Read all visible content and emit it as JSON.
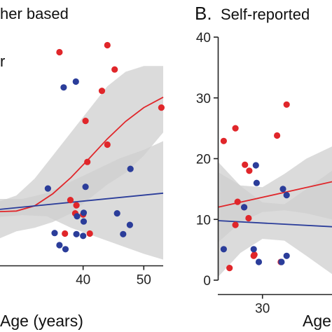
{
  "colors": {
    "red": "#e0262a",
    "blue": "#2b3d9a",
    "ribbon": "#cfcfcf"
  },
  "chart_data": [
    {
      "panel": "A",
      "type": "scatter",
      "title_fragment": "her based",
      "legend_fragment": "r",
      "xlabel": "Age (years)",
      "xlabel_visible": "Age (years)",
      "xticks": [
        40,
        50
      ],
      "xlim": [
        26.3,
        53.2
      ],
      "ylim": [
        0,
        40
      ],
      "series": [
        {
          "color": "red",
          "points": [
            {
              "x": 36.1,
              "y": 37.4
            },
            {
              "x": 44.0,
              "y": 38.6
            },
            {
              "x": 45.2,
              "y": 34.4
            },
            {
              "x": 43.1,
              "y": 30.7
            },
            {
              "x": 52.9,
              "y": 27.8
            },
            {
              "x": 40.4,
              "y": 25.5
            },
            {
              "x": 44.0,
              "y": 21.4
            },
            {
              "x": 40.7,
              "y": 18.4
            },
            {
              "x": 37.9,
              "y": 11.8
            },
            {
              "x": 38.9,
              "y": 10.9
            },
            {
              "x": 40.0,
              "y": 9.3
            },
            {
              "x": 38.7,
              "y": 9.5
            },
            {
              "x": 37.0,
              "y": 6.0
            },
            {
              "x": 41.1,
              "y": 6.0
            }
          ],
          "fit": [
            {
              "x": 26.3,
              "y": 9.8
            },
            {
              "x": 29,
              "y": 9.9
            },
            {
              "x": 32,
              "y": 10.8
            },
            {
              "x": 35,
              "y": 12.9
            },
            {
              "x": 38,
              "y": 15.7
            },
            {
              "x": 41,
              "y": 19.0
            },
            {
              "x": 44,
              "y": 22.4
            },
            {
              "x": 47,
              "y": 25.4
            },
            {
              "x": 50,
              "y": 27.8
            },
            {
              "x": 53.2,
              "y": 29.6
            }
          ],
          "band": [
            {
              "x": 26.3,
              "lo": 5.2,
              "hi": 11.6
            },
            {
              "x": 29,
              "lo": 6.4,
              "hi": 12.6
            },
            {
              "x": 32,
              "lo": 7.0,
              "hi": 15.5
            },
            {
              "x": 35,
              "lo": 8.0,
              "hi": 19.5
            },
            {
              "x": 38,
              "lo": 9.5,
              "hi": 23.5
            },
            {
              "x": 41,
              "lo": 12.0,
              "hi": 27.5
            },
            {
              "x": 44,
              "lo": 14.5,
              "hi": 31.5
            },
            {
              "x": 47,
              "lo": 16.5,
              "hi": 34.0
            },
            {
              "x": 50,
              "lo": 19.5,
              "hi": 35.0
            },
            {
              "x": 53.2,
              "lo": 23.5,
              "hi": 35.0
            }
          ]
        },
        {
          "color": "blue",
          "points": [
            {
              "x": 38.8,
              "y": 32.3
            },
            {
              "x": 36.8,
              "y": 31.3
            },
            {
              "x": 34.2,
              "y": 13.8
            },
            {
              "x": 40.4,
              "y": 14.1
            },
            {
              "x": 47.8,
              "y": 17.2
            },
            {
              "x": 39.0,
              "y": 9.0
            },
            {
              "x": 40.1,
              "y": 9.6
            },
            {
              "x": 40.1,
              "y": 8.1
            },
            {
              "x": 45.6,
              "y": 9.5
            },
            {
              "x": 47.7,
              "y": 7.5
            },
            {
              "x": 35.3,
              "y": 6.1
            },
            {
              "x": 38.9,
              "y": 5.9
            },
            {
              "x": 40.0,
              "y": 5.6
            },
            {
              "x": 36.1,
              "y": 4.0
            },
            {
              "x": 37.1,
              "y": 3.3
            },
            {
              "x": 46.6,
              "y": 5.9
            }
          ],
          "fit": [
            {
              "x": 26.3,
              "y": 10.2
            },
            {
              "x": 53.2,
              "y": 13.0
            }
          ],
          "band": [
            {
              "x": 26.3,
              "lo": 8.9,
              "hi": 12.0
            },
            {
              "x": 30,
              "lo": 9.2,
              "hi": 12.0
            },
            {
              "x": 34,
              "lo": 9.0,
              "hi": 13.0
            },
            {
              "x": 38,
              "lo": 7.0,
              "hi": 15.0
            },
            {
              "x": 42,
              "lo": 5.5,
              "hi": 17.0
            },
            {
              "x": 46,
              "lo": 4.0,
              "hi": 19.0
            },
            {
              "x": 50,
              "lo": 2.5,
              "hi": 20.5
            },
            {
              "x": 53.2,
              "lo": 1.5,
              "hi": 22.0
            }
          ]
        }
      ]
    },
    {
      "panel": "B",
      "type": "scatter",
      "title_letter": "B.",
      "title": "Self-reported",
      "xlabel": "Age",
      "xticks": [
        30
      ],
      "yticks": [
        0,
        10,
        20,
        30,
        40
      ],
      "xlim": [
        23.9,
        39.5
      ],
      "ylim": [
        0,
        40
      ],
      "series": [
        {
          "color": "red",
          "points": [
            {
              "x": 24.7,
              "y": 22.9
            },
            {
              "x": 26.3,
              "y": 25.0
            },
            {
              "x": 27.6,
              "y": 19.0
            },
            {
              "x": 28.2,
              "y": 18.0
            },
            {
              "x": 26.6,
              "y": 12.9
            },
            {
              "x": 26.3,
              "y": 9.1
            },
            {
              "x": 28.1,
              "y": 10.2
            },
            {
              "x": 28.9,
              "y": 4.2
            },
            {
              "x": 25.5,
              "y": 2.0
            },
            {
              "x": 32.5,
              "y": 3.0
            },
            {
              "x": 32.0,
              "y": 23.8
            },
            {
              "x": 33.3,
              "y": 28.9
            },
            {
              "x": 28.8,
              "y": 4.0
            },
            {
              "x": 27.5,
              "y": 12.0
            }
          ],
          "fit": [
            {
              "x": 23.9,
              "y": 12.0
            },
            {
              "x": 39.5,
              "y": 16.2
            }
          ],
          "band": [
            {
              "x": 23.9,
              "lo": 6.2,
              "hi": 17.8
            },
            {
              "x": 27,
              "lo": 9.5,
              "hi": 15.6
            },
            {
              "x": 30,
              "lo": 11.2,
              "hi": 15.3
            },
            {
              "x": 33,
              "lo": 11.5,
              "hi": 17.5
            },
            {
              "x": 36,
              "lo": 11.0,
              "hi": 20.0
            },
            {
              "x": 39.5,
              "lo": 10.0,
              "hi": 22.0
            }
          ]
        },
        {
          "color": "blue",
          "points": [
            {
              "x": 24.7,
              "y": 5.1
            },
            {
              "x": 28.8,
              "y": 5.1
            },
            {
              "x": 29.5,
              "y": 3.0
            },
            {
              "x": 29.1,
              "y": 18.9
            },
            {
              "x": 29.2,
              "y": 16.0
            },
            {
              "x": 32.8,
              "y": 15.0
            },
            {
              "x": 27.5,
              "y": 12.0
            },
            {
              "x": 32.6,
              "y": 3.0
            },
            {
              "x": 33.3,
              "y": 4.0
            },
            {
              "x": 33.3,
              "y": 14.0
            }
          ],
          "fit": [
            {
              "x": 23.9,
              "y": 9.8
            },
            {
              "x": 39.5,
              "y": 8.8
            }
          ],
          "band": [
            {
              "x": 23.9,
              "lo": 0.5,
              "hi": 19.5
            },
            {
              "x": 27,
              "lo": 4.5,
              "hi": 15.5
            },
            {
              "x": 30,
              "lo": 6.8,
              "hi": 12.8
            },
            {
              "x": 33,
              "lo": 6.5,
              "hi": 12.5
            },
            {
              "x": 36,
              "lo": 4.0,
              "hi": 15.0
            },
            {
              "x": 39.5,
              "lo": 1.0,
              "hi": 18.0
            }
          ]
        }
      ]
    }
  ]
}
